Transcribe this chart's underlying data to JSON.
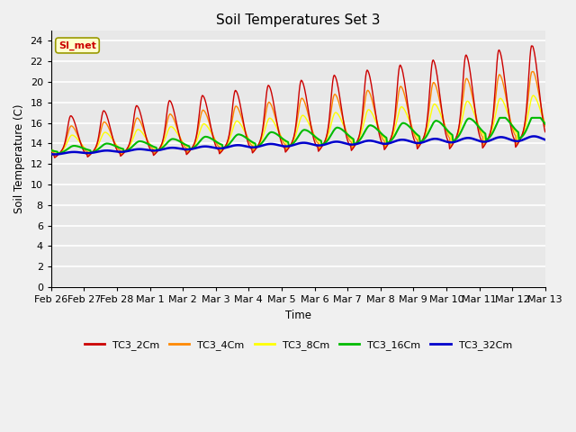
{
  "title": "Soil Temperatures Set 3",
  "xlabel": "Time",
  "ylabel": "Soil Temperature (C)",
  "ylim": [
    0,
    25
  ],
  "yticks": [
    0,
    2,
    4,
    6,
    8,
    10,
    12,
    14,
    16,
    18,
    20,
    22,
    24
  ],
  "xtick_labels": [
    "Feb 26",
    "Feb 27",
    "Feb 28",
    "Mar 1",
    "Mar 2",
    "Mar 3",
    "Mar 4",
    "Mar 5",
    "Mar 6",
    "Mar 7",
    "Mar 8",
    "Mar 9",
    "Mar 10",
    "Mar 11",
    "Mar 12",
    "Mar 13"
  ],
  "series_colors": [
    "#cc0000",
    "#ff8800",
    "#ffff00",
    "#00bb00",
    "#0000cc"
  ],
  "series_labels": [
    "TC3_2Cm",
    "TC3_4Cm",
    "TC3_8Cm",
    "TC3_16Cm",
    "TC3_32Cm"
  ],
  "fig_bg_color": "#f0f0f0",
  "plot_bg_color": "#e8e8e8",
  "annotation_text": "SI_met",
  "annotation_bg": "#ffffcc",
  "annotation_fg": "#cc0000",
  "annotation_border": "#999900"
}
